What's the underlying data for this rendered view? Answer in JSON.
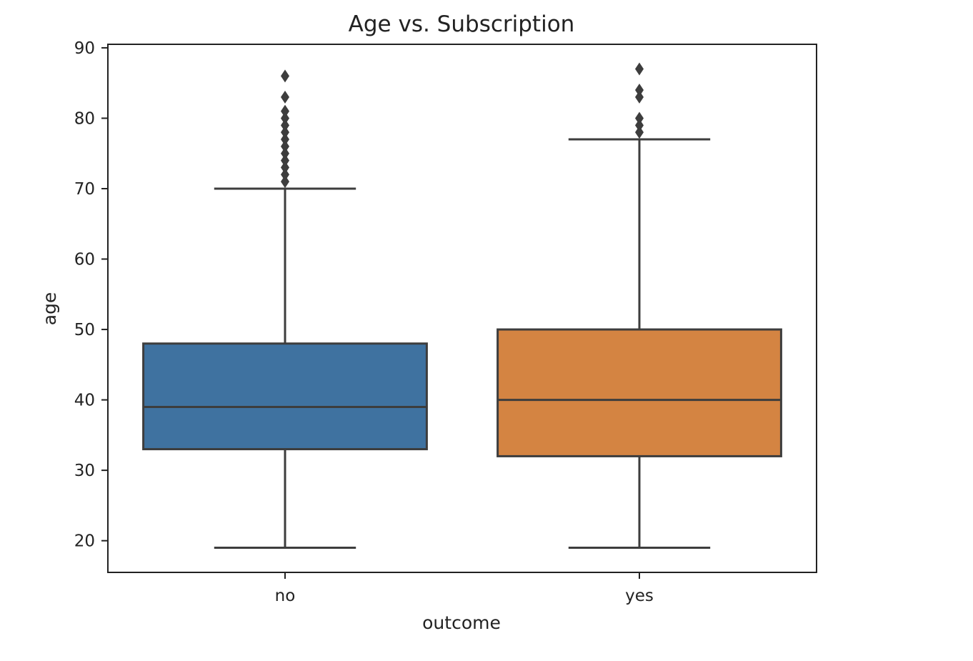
{
  "chart_data": {
    "type": "box",
    "title": "Age vs. Subscription",
    "xlabel": "outcome",
    "ylabel": "age",
    "ylim": [
      15.5,
      90.5
    ],
    "yticks": [
      20,
      30,
      40,
      50,
      60,
      70,
      80,
      90
    ],
    "grid": false,
    "categories": [
      "no",
      "yes"
    ],
    "series": [
      {
        "category": "no",
        "color": "#3f72a0",
        "whisker_low": 19,
        "q1": 33,
        "median": 39,
        "q3": 48,
        "whisker_high": 70,
        "outliers": [
          71,
          72,
          73,
          74,
          75,
          76,
          77,
          78,
          79,
          80,
          81,
          83,
          86
        ]
      },
      {
        "category": "yes",
        "color": "#d48442",
        "whisker_low": 19,
        "q1": 32,
        "median": 40,
        "q3": 50,
        "whisker_high": 77,
        "outliers": [
          78,
          79,
          80,
          83,
          84,
          87
        ]
      }
    ]
  }
}
